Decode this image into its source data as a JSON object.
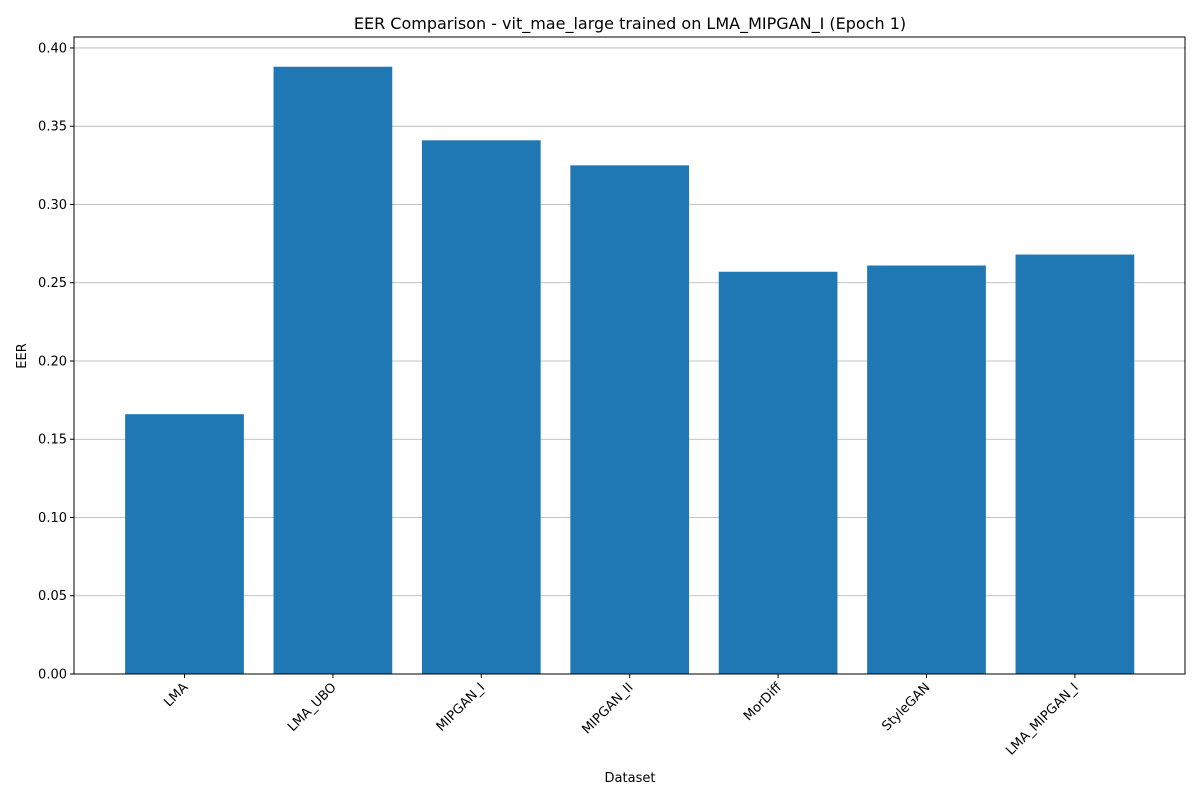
{
  "chart_data": {
    "type": "bar",
    "title": "EER Comparison - vit_mae_large trained on LMA_MIPGAN_I (Epoch 1)",
    "xlabel": "Dataset",
    "ylabel": "EER",
    "categories": [
      "LMA",
      "LMA_UBO",
      "MIPGAN_I",
      "MIPGAN_II",
      "MorDiff",
      "StyleGAN",
      "LMA_MIPGAN_I"
    ],
    "values": [
      0.166,
      0.388,
      0.341,
      0.325,
      0.257,
      0.261,
      0.268
    ],
    "ylim": [
      0,
      0.407
    ],
    "yticks": [
      0.0,
      0.05,
      0.1,
      0.15,
      0.2,
      0.25,
      0.3,
      0.35,
      0.4
    ],
    "ytick_labels": [
      "0.00",
      "0.05",
      "0.10",
      "0.15",
      "0.20",
      "0.25",
      "0.30",
      "0.35",
      "0.40"
    ],
    "grid": "y-axis major gridlines",
    "legend": "none",
    "xtick_rotation": "45 degrees",
    "bar_color": "#1f77b4",
    "grid_color": "#b0b0b0"
  }
}
